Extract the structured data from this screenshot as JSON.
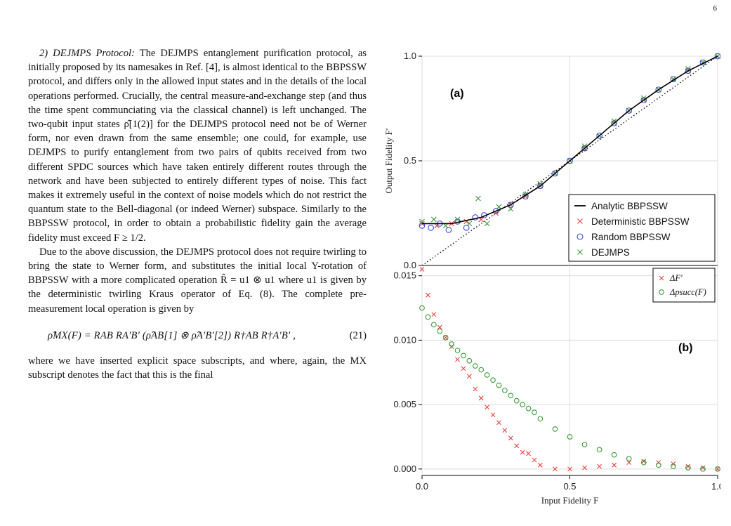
{
  "page_number": "6",
  "text": {
    "p1_lead": "2) DEJMPS Protocol:",
    "p1": "The DEJMPS entanglement purification protocol, as initially proposed by its namesakes in Ref. [4], is almost identical to the BBPSSW protocol, and differs only in the allowed input states and in the details of the local operations performed. Crucially, the central measure-and-exchange step (and thus the time spent communciating via the classical channel) is left unchanged. The two-qubit input states ρ̂[1(2)] for the DEJMPS protocol need not be of Werner form, nor even drawn from the same ensemble; one could, for example, use DEJMPS to purify entanglement from two pairs of qubits received from two different SPDC sources which have taken entirely different routes through the network and have been subjected to entirely different types of noise. This fact makes it extremely useful in the context of noise models which do not restrict the quantum state to the Bell-diagonal (or indeed Werner) subspace. Similarly to the BBPSSW protocol, in order to obtain a probabilistic fidelity gain the average fidelity must exceed F ≥ 1/2.",
    "p2": "Due to the above discussion, the DEJMPS protocol does not require twirling to bring the state to Werner form, and substitutes the initial local Y-rotation of BBPSSW with a more complicated operation R̂ = u1 ⊗ u1 where u1 is given by the deterministic twirling Kraus operator of Eq. (8). The complete pre-measurement local operation is given by",
    "equation": "ρ̂MX(F) = RAB RA′B′ (ρ̂AB[1] ⊗ ρ̂A′B′[2]) R†AB R†A′B′ ,",
    "equation_number": "(21)",
    "p3": "where we have inserted explicit space subscripts, and where, again, the MX subscript denotes the fact that this is the final"
  },
  "figure": {
    "panel_a_label": "(a)",
    "panel_b_label": "(b)",
    "xlabel": "Input Fidelity F",
    "ylabel_a": "Output Fidelity F′",
    "legend_a": [
      "Analytic BBPSSW",
      "Deterministic BBPSSW",
      "Random BBPSSW",
      "DEJMPS"
    ],
    "legend_b": [
      "ΔF′",
      "Δpsucc(F)"
    ],
    "colors": {
      "analytic": "#000000",
      "deterministic": "#e8423f",
      "random": "#3b4bd8",
      "dejmps": "#3a9a3a",
      "delta_f": "#e8423f",
      "delta_p": "#3a9a3a",
      "grid": "#dddddd"
    }
  },
  "chart_data": [
    {
      "type": "scatter",
      "panel": "(a)",
      "xlabel": "Input Fidelity F",
      "ylabel": "Output Fidelity F′",
      "xlim": [
        0.0,
        1.0
      ],
      "ylim": [
        0.0,
        1.0
      ],
      "x_ticks": [
        "0.0",
        "0.5",
        "1.0"
      ],
      "y_ticks": [
        "0.0",
        "0.5",
        "1.0"
      ],
      "grid": true,
      "legend_position": "bottom-right",
      "series": [
        {
          "name": "Analytic BBPSSW",
          "style": "line",
          "x": [
            0.0,
            0.1,
            0.2,
            0.3,
            0.4,
            0.5,
            0.6,
            0.7,
            0.8,
            0.9,
            1.0
          ],
          "y": [
            0.2,
            0.2,
            0.23,
            0.29,
            0.38,
            0.5,
            0.62,
            0.74,
            0.84,
            0.93,
            1.0
          ]
        },
        {
          "name": "Deterministic BBPSSW",
          "style": "x-marker",
          "x": [
            0.0,
            0.05,
            0.1,
            0.15,
            0.2,
            0.25,
            0.3,
            0.35,
            0.4,
            0.45,
            0.5,
            0.55,
            0.6,
            0.65,
            0.7,
            0.75,
            0.8,
            0.85,
            0.9,
            0.95,
            1.0
          ],
          "y": [
            0.2,
            0.19,
            0.2,
            0.21,
            0.22,
            0.25,
            0.29,
            0.33,
            0.38,
            0.44,
            0.5,
            0.56,
            0.62,
            0.68,
            0.74,
            0.79,
            0.84,
            0.89,
            0.93,
            0.97,
            1.0
          ]
        },
        {
          "name": "Random BBPSSW",
          "style": "circle-marker",
          "x": [
            0.0,
            0.03,
            0.06,
            0.09,
            0.12,
            0.15,
            0.18,
            0.21,
            0.25,
            0.3,
            0.35,
            0.4,
            0.45,
            0.5,
            0.55,
            0.6,
            0.65,
            0.7,
            0.75,
            0.8,
            0.85,
            0.9,
            0.95,
            1.0
          ],
          "y": [
            0.19,
            0.18,
            0.2,
            0.17,
            0.21,
            0.18,
            0.23,
            0.24,
            0.26,
            0.29,
            0.33,
            0.38,
            0.44,
            0.5,
            0.56,
            0.62,
            0.68,
            0.74,
            0.79,
            0.84,
            0.89,
            0.93,
            0.97,
            1.0
          ]
        },
        {
          "name": "DEJMPS",
          "style": "x-marker",
          "x": [
            0.0,
            0.04,
            0.08,
            0.12,
            0.16,
            0.19,
            0.22,
            0.26,
            0.3,
            0.35,
            0.4,
            0.45,
            0.5,
            0.55,
            0.6,
            0.65,
            0.7,
            0.75,
            0.8,
            0.85,
            0.9,
            0.95,
            1.0
          ],
          "y": [
            0.21,
            0.22,
            0.19,
            0.22,
            0.2,
            0.32,
            0.2,
            0.28,
            0.27,
            0.34,
            0.39,
            0.44,
            0.5,
            0.57,
            0.62,
            0.69,
            0.74,
            0.8,
            0.84,
            0.89,
            0.94,
            0.97,
            1.0
          ]
        }
      ],
      "reference_line": {
        "style": "dotted",
        "x": [
          0.0,
          1.0
        ],
        "y": [
          0.0,
          1.0
        ]
      }
    },
    {
      "type": "scatter",
      "panel": "(b)",
      "xlabel": "Input Fidelity F",
      "xlim": [
        0.0,
        1.0
      ],
      "ylim": [
        -0.0005,
        0.0158
      ],
      "x_ticks": [
        "0.0",
        "0.5",
        "1.0"
      ],
      "y_ticks": [
        "0.000",
        "0.005",
        "0.010",
        "0.015"
      ],
      "grid": true,
      "legend_position": "top-right",
      "series": [
        {
          "name": "ΔF′",
          "style": "x-marker",
          "x": [
            0.0,
            0.02,
            0.04,
            0.06,
            0.08,
            0.1,
            0.12,
            0.14,
            0.16,
            0.18,
            0.2,
            0.22,
            0.24,
            0.26,
            0.28,
            0.3,
            0.32,
            0.34,
            0.36,
            0.38,
            0.4,
            0.45,
            0.5,
            0.55,
            0.6,
            0.65,
            0.7,
            0.75,
            0.8,
            0.85,
            0.9,
            0.95,
            1.0
          ],
          "y": [
            0.0155,
            0.0135,
            0.012,
            0.011,
            0.0102,
            0.0095,
            0.0085,
            0.0078,
            0.0072,
            0.0062,
            0.0055,
            0.0048,
            0.0042,
            0.0036,
            0.003,
            0.0024,
            0.0018,
            0.0013,
            0.0012,
            0.0007,
            0.0003,
            0.0,
            0.0,
            0.0001,
            0.0002,
            0.0003,
            0.0005,
            0.0006,
            0.0005,
            0.0004,
            0.0002,
            0.0001,
            0.0
          ]
        },
        {
          "name": "Δpsucc(F)",
          "style": "circle-marker",
          "x": [
            0.0,
            0.02,
            0.04,
            0.06,
            0.08,
            0.1,
            0.12,
            0.14,
            0.16,
            0.18,
            0.2,
            0.22,
            0.24,
            0.26,
            0.28,
            0.3,
            0.32,
            0.34,
            0.36,
            0.38,
            0.4,
            0.45,
            0.5,
            0.55,
            0.6,
            0.65,
            0.7,
            0.75,
            0.8,
            0.85,
            0.9,
            0.95,
            1.0
          ],
          "y": [
            0.0125,
            0.0118,
            0.0112,
            0.0107,
            0.0102,
            0.0097,
            0.0092,
            0.0088,
            0.0084,
            0.008,
            0.0077,
            0.0073,
            0.0069,
            0.0065,
            0.0061,
            0.0057,
            0.0053,
            0.005,
            0.0047,
            0.0044,
            0.0039,
            0.0031,
            0.0025,
            0.0019,
            0.0015,
            0.0011,
            0.0008,
            0.0005,
            0.0003,
            0.0002,
            0.0001,
            0.0,
            0.0
          ]
        }
      ]
    }
  ]
}
